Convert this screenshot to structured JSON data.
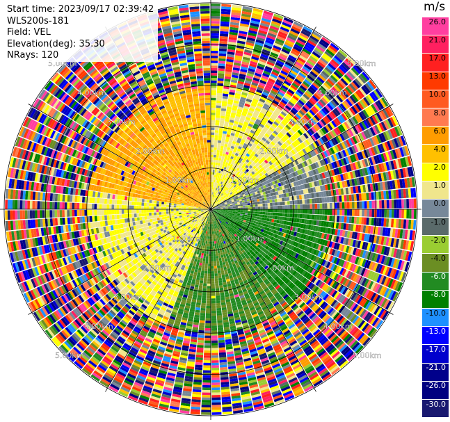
{
  "header": {
    "start_time": "Start time: 2023/09/17 02:39:42",
    "instrument": "WLS200s-181",
    "field": "Field: VEL",
    "elevation": "Elevation(deg): 35.30",
    "nrays": "NRays: 120"
  },
  "colorbar": {
    "unit": "m/s",
    "ticks": [
      "26.0",
      "21.0",
      "17.0",
      "13.0",
      "10.0",
      "8.0",
      "6.0",
      "4.0",
      "2.0",
      "1.0",
      "0.0",
      "-1.0",
      "-2.0",
      "-4.0",
      "-6.0",
      "-8.0",
      "-10.0",
      "-13.0",
      "-17.0",
      "-21.0",
      "-26.0",
      "-30.0"
    ],
    "colors": [
      "#ff3fa0",
      "#ff2060",
      "#ff2020",
      "#ff3a00",
      "#ff5a20",
      "#ff7a50",
      "#ff9c00",
      "#ffc000",
      "#ffff00",
      "#f0e68c",
      "#778899",
      "#5a6a6a",
      "#9acd32",
      "#6b8e23",
      "#228b22",
      "#008000",
      "#1e90ff",
      "#0000ff",
      "#0000cd",
      "#00008b",
      "#000080",
      "#191970"
    ]
  },
  "chart_data": {
    "type": "heatmap",
    "subtype": "polar PPI",
    "field": "VEL",
    "units": "m/s",
    "nrays": 120,
    "elevation_deg": 35.3,
    "range_rings_km": [
      1.0,
      2.0,
      3.0,
      4.0,
      5.0
    ],
    "range_ring_labels": [
      "1.00km",
      "2.00km",
      "3.00km",
      "4.00km",
      "5.00km"
    ],
    "max_range_km": 5.0,
    "azimuth_lines_deg": [
      0,
      30,
      60,
      90,
      120,
      150,
      180,
      210,
      240,
      270,
      300,
      330
    ],
    "velocity_pattern": [
      {
        "azimuth_deg": [
          280,
          360
        ],
        "range_km": [
          0,
          3.0
        ],
        "dominant_value": 6.0
      },
      {
        "azimuth_deg": [
          200,
          280
        ],
        "range_km": [
          0,
          3.0
        ],
        "dominant_value": 2.0
      },
      {
        "azimuth_deg": [
          0,
          60
        ],
        "range_km": [
          0,
          3.0
        ],
        "dominant_value": 2.0
      },
      {
        "azimuth_deg": [
          60,
          90
        ],
        "range_km": [
          0,
          3.0
        ],
        "dominant_value": 0.0
      },
      {
        "azimuth_deg": [
          90,
          140
        ],
        "range_km": [
          0,
          3.0
        ],
        "dominant_value": -6.0
      },
      {
        "azimuth_deg": [
          140,
          200
        ],
        "range_km": [
          0,
          3.0
        ],
        "dominant_value": -4.0
      },
      {
        "azimuth_deg": [
          0,
          360
        ],
        "range_km": [
          3.0,
          5.0
        ],
        "dominant_value": "noise"
      }
    ]
  }
}
